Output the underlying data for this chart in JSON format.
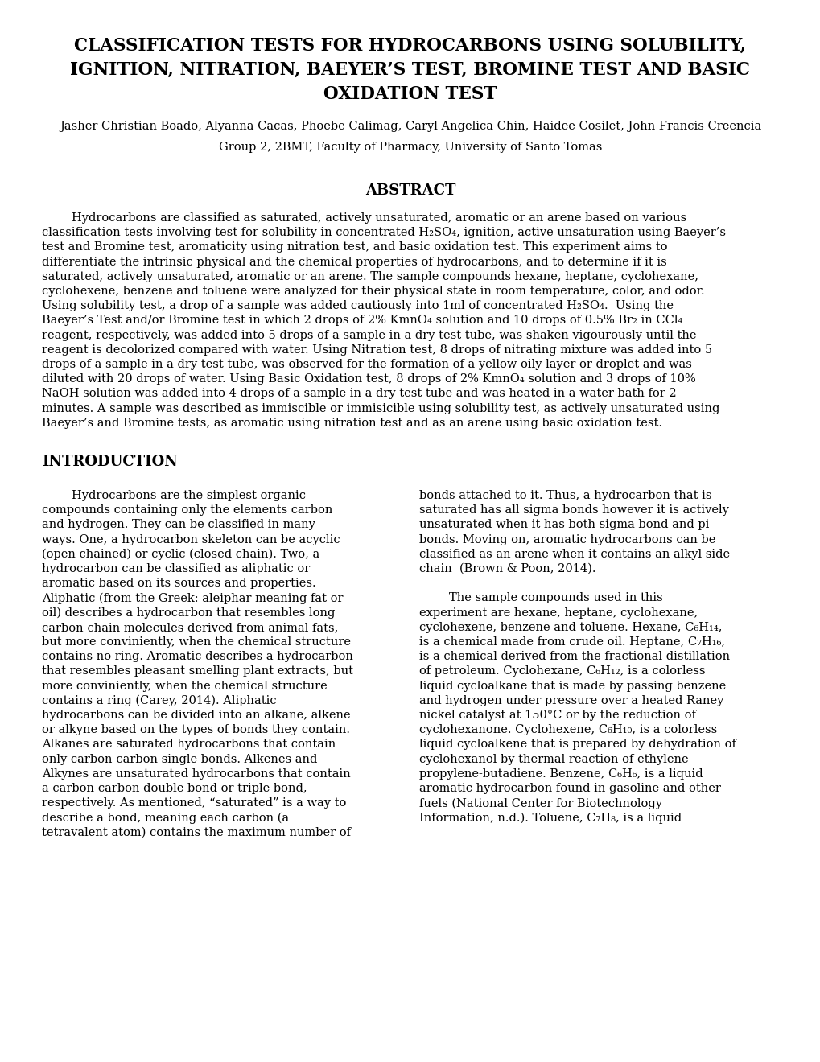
{
  "bg_color": "#ffffff",
  "title_line1": "CLASSIFICATION TESTS FOR HYDROCARBONS USING SOLUBILITY,",
  "title_line2": "IGNITION, NITRATION, BAEYER’S TEST, BROMINE TEST AND BASIC",
  "title_line3": "OXIDATION TEST",
  "authors": "Jasher Christian Boado, Alyanna Cacas, Phoebe Calimag, Caryl Angelica Chin, Haidee Cosilet, John Francis Creencia",
  "affiliation": "Group 2, 2BMT, Faculty of Pharmacy, University of Santo Tomas",
  "abstract_title": "ABSTRACT",
  "abstract_indent": "        Hydrocarbons are classified as saturated, actively unsaturated, aromatic or an arene based on various",
  "abstract_lines": [
    "        Hydrocarbons are classified as saturated, actively unsaturated, aromatic or an arene based on various",
    "classification tests involving test for solubility in concentrated H₂SO₄, ignition, active unsaturation using Baeyer’s",
    "test and Bromine test, aromaticity using nitration test, and basic oxidation test. This experiment aims to",
    "differentiate the intrinsic physical and the chemical properties of hydrocarbons, and to determine if it is",
    "saturated, actively unsaturated, aromatic or an arene. The sample compounds hexane, heptane, cyclohexane,",
    "cyclohexene, benzene and toluene were analyzed for their physical state in room temperature, color, and odor.",
    "Using solubility test, a drop of a sample was added cautiously into 1ml of concentrated H₂SO₄.  Using the",
    "Baeyer’s Test and/or Bromine test in which 2 drops of 2% KmnO₄ solution and 10 drops of 0.5% Br₂ in CCl₄",
    "reagent, respectively, was added into 5 drops of a sample in a dry test tube, was shaken vigourously until the",
    "reagent is decolorized compared with water. Using Nitration test, 8 drops of nitrating mixture was added into 5",
    "drops of a sample in a dry test tube, was observed for the formation of a yellow oily layer or droplet and was",
    "diluted with 20 drops of water. Using Basic Oxidation test, 8 drops of 2% KmnO₄ solution and 3 drops of 10%",
    "NaOH solution was added into 4 drops of a sample in a dry test tube and was heated in a water bath for 2",
    "minutes. A sample was described as immiscible or immisicible using solubility test, as actively unsaturated using",
    "Baeyer’s and Bromine tests, as aromatic using nitration test and as an arene using basic oxidation test."
  ],
  "intro_title": "INTRODUCTION",
  "intro_left_lines": [
    "        Hydrocarbons are the simplest organic",
    "compounds containing only the elements carbon",
    "and hydrogen. They can be classified in many",
    "ways. One, a hydrocarbon skeleton can be acyclic",
    "(open chained) or cyclic (closed chain). Two, a",
    "hydrocarbon can be classified as aliphatic or",
    "aromatic based on its sources and properties.",
    "Aliphatic (from the Greek: aleiphar meaning fat or",
    "oil) describes a hydrocarbon that resembles long",
    "carbon-chain molecules derived from animal fats,",
    "but more conviniently, when the chemical structure",
    "contains no ring. Aromatic describes a hydrocarbon",
    "that resembles pleasant smelling plant extracts, but",
    "more conviniently, when the chemical structure",
    "contains a ring (Carey, 2014). Aliphatic",
    "hydrocarbons can be divided into an alkane, alkene",
    "or alkyne based on the types of bonds they contain.",
    "Alkanes are saturated hydrocarbons that contain",
    "only carbon-carbon single bonds. Alkenes and",
    "Alkynes are unsaturated hydrocarbons that contain",
    "a carbon-carbon double bond or triple bond,",
    "respectively. As mentioned, “saturated” is a way to",
    "describe a bond, meaning each carbon (a",
    "tetravalent atom) contains the maximum number of"
  ],
  "intro_right_lines": [
    "bonds attached to it. Thus, a hydrocarbon that is",
    "saturated has all sigma bonds however it is actively",
    "unsaturated when it has both sigma bond and pi",
    "bonds. Moving on, aromatic hydrocarbons can be",
    "classified as an arene when it contains an alkyl side",
    "chain  (Brown & Poon, 2014).",
    "",
    "        The sample compounds used in this",
    "experiment are hexane, heptane, cyclohexane,",
    "cyclohexene, benzene and toluene. Hexane, C₆H₁₄,",
    "is a chemical made from crude oil. Heptane, C₇H₁₆,",
    "is a chemical derived from the fractional distillation",
    "of petroleum. Cyclohexane, C₆H₁₂, is a colorless",
    "liquid cycloalkane that is made by passing benzene",
    "and hydrogen under pressure over a heated Raney",
    "nickel catalyst at 150°C or by the reduction of",
    "cyclohexanone. Cyclohexene, C₆H₁₀, is a colorless",
    "liquid cycloalkene that is prepared by dehydration of",
    "cyclohexanol by thermal reaction of ethylene-",
    "propylene-butadiene. Benzene, C₆H₆, is a liquid",
    "aromatic hydrocarbon found in gasoline and other",
    "fuels (National Center for Biotechnology",
    "Information, n.d.). Toluene, C₇H₈, is a liquid"
  ]
}
